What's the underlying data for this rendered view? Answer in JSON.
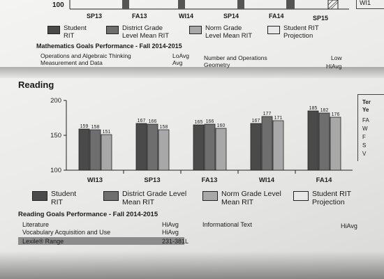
{
  "math_chart_fragment": {
    "y_tick": "100",
    "categories": [
      "SP13",
      "FA13",
      "WI14",
      "SP14",
      "FA14",
      "SP15"
    ],
    "right_edge_text": "WI1"
  },
  "math_legend": [
    {
      "label": "Student RIT",
      "color": "#4a4a4a"
    },
    {
      "label": "District Grade Level Mean RIT",
      "color": "#6e6e6e"
    },
    {
      "label": "Norm Grade Level Mean RIT",
      "color": "#a8a8a8"
    },
    {
      "label": "Student RIT Projection",
      "color": "#e8e8e8"
    }
  ],
  "math_goals": {
    "title": "Mathematics Goals Performance - Fall 2014-2015",
    "rows": [
      {
        "goal": "Operations and Algebraic Thinking",
        "level": "LoAvg"
      },
      {
        "goal": "Measurement and Data",
        "level": "Avg"
      }
    ],
    "right": [
      {
        "goal": "Number and Operations",
        "level": "Low"
      },
      {
        "goal": "Geometry",
        "level": "HiAvg"
      }
    ]
  },
  "reading": {
    "title": "Reading"
  },
  "chart_data": {
    "type": "bar",
    "title": "",
    "xlabel": "",
    "ylabel": "",
    "ylim": [
      100,
      200
    ],
    "yticks": [
      100,
      150,
      200
    ],
    "categories": [
      "WI13",
      "SP13",
      "FA13",
      "WI14",
      "FA14"
    ],
    "series": [
      {
        "name": "Student RIT",
        "color": "#4a4a4a",
        "values": [
          159,
          167,
          165,
          167,
          185
        ]
      },
      {
        "name": "District Grade Level Mean RIT",
        "color": "#6e6e6e",
        "values": [
          158,
          166,
          166,
          177,
          182
        ]
      },
      {
        "name": "Norm Grade Level Mean RIT",
        "color": "#a8a8a8",
        "values": [
          151,
          158,
          160,
          171,
          176
        ]
      }
    ],
    "grid": false,
    "legend": "bottom"
  },
  "reading_legend": [
    {
      "label": "Student RIT",
      "color": "#4a4a4a"
    },
    {
      "label": "District Grade Level Mean RIT",
      "color": "#6e6e6e"
    },
    {
      "label": "Norm Grade Level Mean RIT",
      "color": "#a8a8a8"
    },
    {
      "label": "Student RIT Projection",
      "color": "#e8e8e8"
    }
  ],
  "reading_goals": {
    "title": "Reading Goals Performance - Fall 2014-2015",
    "rows": [
      {
        "goal": "Literature",
        "level": "HiAvg"
      },
      {
        "goal": "Vocabulary Acquisition and Use",
        "level": "HiAvg"
      }
    ],
    "right": [
      {
        "goal": "Informational Text",
        "level": "HiAvg"
      }
    ],
    "lexile_label": "Lexile® Range",
    "lexile_value": "231-381L"
  },
  "side_box_text": [
    "Ter",
    "Ye",
    "FA",
    "W",
    "F",
    "S",
    "V"
  ]
}
